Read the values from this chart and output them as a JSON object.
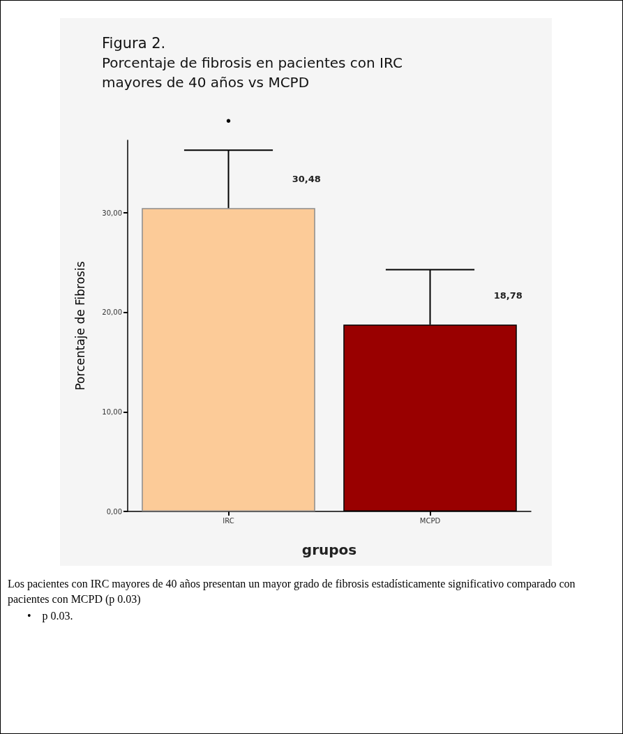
{
  "chart_data": {
    "type": "bar",
    "title": "Figura 2.",
    "subtitle": "Porcentaje de fibrosis en pacientes con IRC mayores de 40 años vs MCPD",
    "xlabel": "grupos",
    "ylabel": "Porcentaje de Fibrosis",
    "categories": [
      "IRC",
      "MCPD"
    ],
    "values": [
      30.48,
      18.78
    ],
    "colors": [
      "#fccb98",
      "#990000"
    ],
    "errors": [
      [
        30.48,
        36.3
      ],
      [
        18.78,
        24.3
      ]
    ],
    "value_labels": [
      "30,48",
      "18,78"
    ],
    "ylim": [
      0,
      37.3
    ],
    "yticks": [
      {
        "value": 0,
        "label": "0,00"
      },
      {
        "value": 10,
        "label": "10,00"
      },
      {
        "value": 20,
        "label": "20,00"
      },
      {
        "value": 30,
        "label": "30,00"
      }
    ],
    "grid": false,
    "annotations": [
      "•",
      "Los pacientes con IRC mayores de 40 años presentan un mayor grado de fibrosis estadísticamente significativo comparado con pacientes con MCPD (p 0.03)",
      "•    p 0.03."
    ]
  }
}
